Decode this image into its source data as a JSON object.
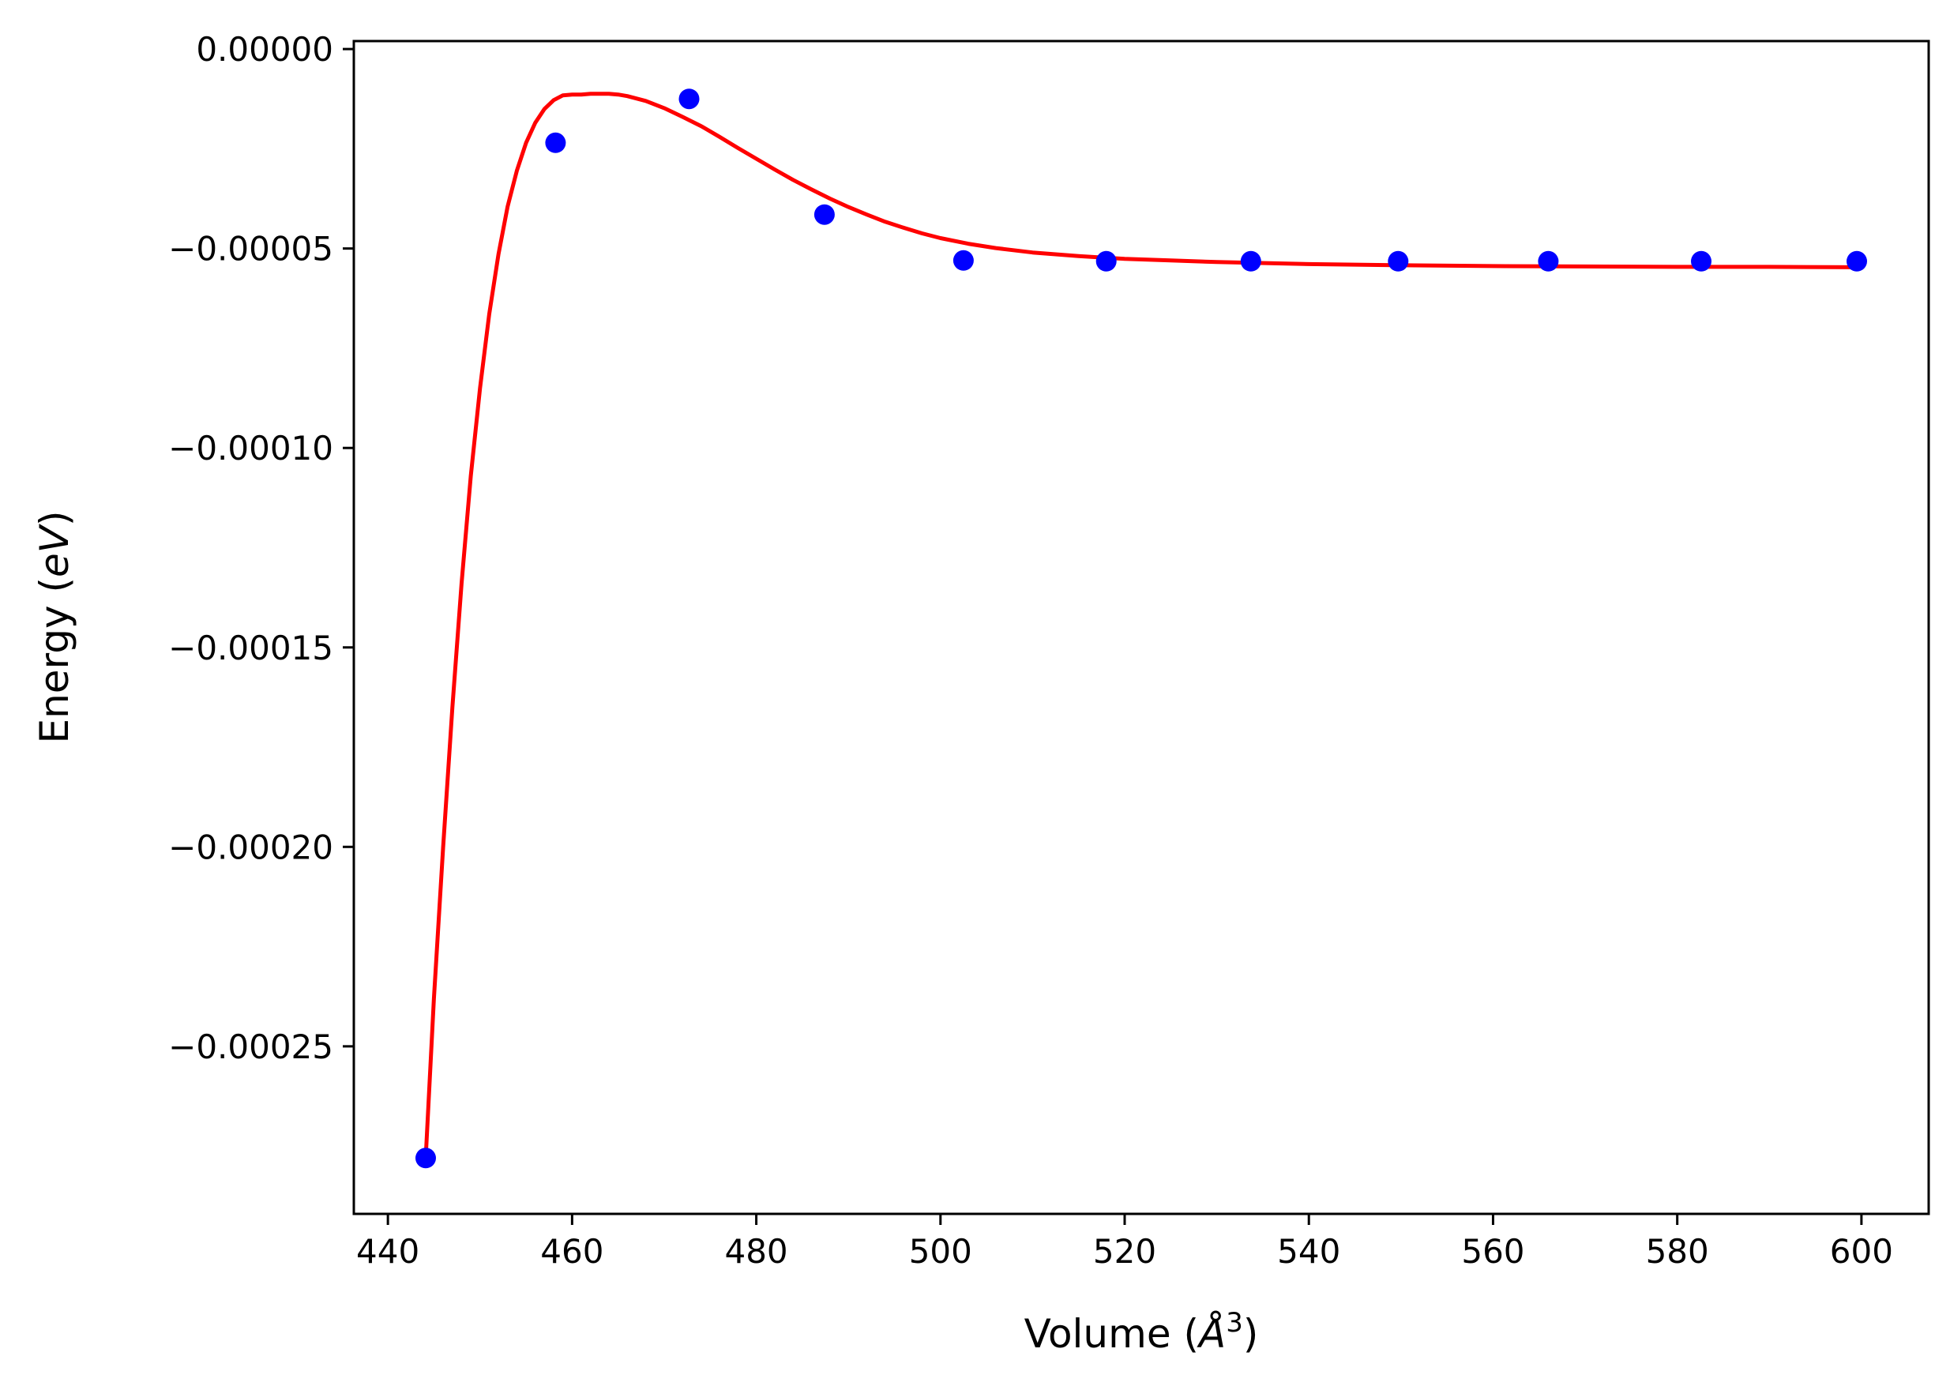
{
  "chart_data": {
    "type": "scatter",
    "title": "",
    "xlabel": "Volume",
    "xlabel_unit": "Å",
    "xlabel_unit_exponent": "3",
    "ylabel": "Energy",
    "ylabel_unit": "eV",
    "xlim": [
      436.3,
      607.3
    ],
    "ylim": [
      -0.000292,
      2e-06
    ],
    "x_ticks": [
      440,
      460,
      480,
      500,
      520,
      540,
      560,
      580,
      600
    ],
    "x_tick_labels": [
      "440",
      "460",
      "480",
      "500",
      "520",
      "540",
      "560",
      "580",
      "600"
    ],
    "y_ticks": [
      0.0,
      -5e-05,
      -0.0001,
      -0.00015,
      -0.0002,
      -0.00025
    ],
    "y_tick_labels": [
      "0.00000",
      "−0.00005",
      "−0.00010",
      "−0.00015",
      "−0.00020",
      "−0.00025"
    ],
    "grid": false,
    "series": [
      {
        "kind": "scatter",
        "color": "#0000ff",
        "x": [
          444.1,
          458.2,
          472.7,
          487.4,
          502.5,
          518.0,
          533.7,
          549.7,
          566.0,
          582.6,
          599.5
        ],
        "y": [
          -0.000278,
          -2.35e-05,
          -1.25e-05,
          -4.15e-05,
          -5.3e-05,
          -5.32e-05,
          -5.32e-05,
          -5.32e-05,
          -5.32e-05,
          -5.32e-05,
          -5.32e-05
        ]
      },
      {
        "kind": "line",
        "color": "#ff0000",
        "x": [
          444.1,
          445.0,
          446.0,
          447.0,
          448.0,
          449.0,
          450.0,
          451.0,
          452.0,
          453.0,
          454.0,
          455.0,
          456.0,
          457.0,
          458.0,
          459.0,
          460.0,
          461.0,
          462.0,
          463.0,
          464.0,
          465.0,
          466.0,
          468.0,
          470.0,
          472.0,
          474.0,
          476.0,
          478.0,
          480.0,
          482.0,
          484.0,
          486.0,
          488.0,
          490.0,
          492.0,
          494.0,
          496.0,
          498.0,
          500.0,
          503.0,
          506.0,
          510.0,
          515.0,
          520.0,
          525.0,
          530.0,
          540.0,
          550.0,
          560.0,
          570.0,
          580.0,
          590.0,
          599.5
        ],
        "y": [
          -0.000278,
          -0.000238,
          -0.0002,
          -0.000165,
          -0.000134,
          -0.000107,
          -8.5e-05,
          -6.65e-05,
          -5.15e-05,
          -3.95e-05,
          -3.05e-05,
          -2.35e-05,
          -1.85e-05,
          -1.5e-05,
          -1.28e-05,
          -1.16e-05,
          -1.14e-05,
          -1.14e-05,
          -1.12e-05,
          -1.12e-05,
          -1.12e-05,
          -1.14e-05,
          -1.18e-05,
          -1.3e-05,
          -1.48e-05,
          -1.7e-05,
          -1.93e-05,
          -2.2e-05,
          -2.48e-05,
          -2.75e-05,
          -3.02e-05,
          -3.28e-05,
          -3.52e-05,
          -3.75e-05,
          -3.96e-05,
          -4.15e-05,
          -4.33e-05,
          -4.48e-05,
          -4.62e-05,
          -4.74e-05,
          -4.88e-05,
          -4.99e-05,
          -5.1e-05,
          -5.19e-05,
          -5.26e-05,
          -5.3e-05,
          -5.34e-05,
          -5.39e-05,
          -5.42e-05,
          -5.44e-05,
          -5.45e-05,
          -5.46e-05,
          -5.46e-05,
          -5.47e-05
        ]
      }
    ]
  }
}
